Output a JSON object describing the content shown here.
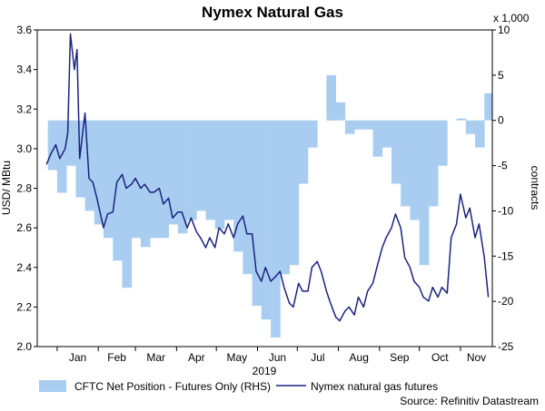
{
  "chart_data": {
    "type": "line",
    "title": "Nymex Natural Gas",
    "xlabel": "2019",
    "ylabel_left": "USD/ MBtu",
    "ylabel_right": "contracts",
    "right_unit": "x 1,000",
    "source": "Source: Refinitiv Datastream",
    "ylim_left": [
      2.0,
      3.6
    ],
    "ylim_right": [
      -25,
      10
    ],
    "yticks_left": [
      "2.0",
      "2.2",
      "2.4",
      "2.6",
      "2.8",
      "3.0",
      "3.2",
      "3.4",
      "3.6"
    ],
    "yticks_right": [
      "-25",
      "-20",
      "-15",
      "-10",
      "-5",
      "0",
      "5",
      "10"
    ],
    "month_labels": [
      "Jan",
      "Feb",
      "Mar",
      "Apr",
      "May",
      "Jun",
      "Jul",
      "Aug",
      "Sep",
      "Oct",
      "Nov"
    ],
    "grid": false,
    "colors": {
      "area": "#a9cdf0",
      "line": "#1a237e"
    },
    "series": [
      {
        "name": "CFTC Net Position - Futures Only (RHS)",
        "type": "area",
        "axis": "right",
        "x": [
          "2018-12-25",
          "2019-01-01",
          "2019-01-08",
          "2019-01-15",
          "2019-01-22",
          "2019-01-29",
          "2019-02-05",
          "2019-02-12",
          "2019-02-19",
          "2019-02-26",
          "2019-03-05",
          "2019-03-12",
          "2019-03-19",
          "2019-03-26",
          "2019-04-02",
          "2019-04-09",
          "2019-04-16",
          "2019-04-23",
          "2019-04-30",
          "2019-05-07",
          "2019-05-14",
          "2019-05-21",
          "2019-05-28",
          "2019-06-04",
          "2019-06-11",
          "2019-06-18",
          "2019-06-25",
          "2019-07-02",
          "2019-07-09",
          "2019-07-16",
          "2019-07-23",
          "2019-07-30",
          "2019-08-06",
          "2019-08-13",
          "2019-08-20",
          "2019-08-27",
          "2019-09-03",
          "2019-09-10",
          "2019-09-17",
          "2019-09-24",
          "2019-10-01",
          "2019-10-08",
          "2019-10-15",
          "2019-10-22",
          "2019-10-29",
          "2019-11-05",
          "2019-11-12",
          "2019-11-19"
        ],
        "y": [
          -5.5,
          -8,
          -5,
          -8.5,
          -10,
          -11.5,
          -13,
          -15.5,
          -18.5,
          -13,
          -14,
          -13,
          -13,
          -11.5,
          -12.5,
          -11,
          -10,
          -11,
          -12,
          -11,
          -14.5,
          -17,
          -20.5,
          -22,
          -24,
          -17,
          -16,
          -7,
          -3,
          0,
          5,
          2,
          -1.5,
          -1,
          -1,
          -4,
          -3,
          -7,
          -9.5,
          -11,
          -16,
          -9.5,
          -5,
          0,
          0.2,
          -1.5,
          -3,
          3
        ]
      },
      {
        "name": "Nymex natural gas futures",
        "type": "line",
        "axis": "left",
        "x": [
          "2018-12-24",
          "2018-12-27",
          "2018-12-31",
          "2019-01-03",
          "2019-01-07",
          "2019-01-09",
          "2019-01-11",
          "2019-01-14",
          "2019-01-16",
          "2019-01-18",
          "2019-01-22",
          "2019-01-25",
          "2019-01-28",
          "2019-01-31",
          "2019-02-05",
          "2019-02-08",
          "2019-02-12",
          "2019-02-15",
          "2019-02-19",
          "2019-02-22",
          "2019-02-26",
          "2019-03-01",
          "2019-03-05",
          "2019-03-08",
          "2019-03-12",
          "2019-03-15",
          "2019-03-19",
          "2019-03-22",
          "2019-03-26",
          "2019-03-29",
          "2019-04-02",
          "2019-04-05",
          "2019-04-09",
          "2019-04-12",
          "2019-04-16",
          "2019-04-19",
          "2019-04-23",
          "2019-04-26",
          "2019-04-30",
          "2019-05-03",
          "2019-05-07",
          "2019-05-10",
          "2019-05-14",
          "2019-05-17",
          "2019-05-21",
          "2019-05-24",
          "2019-05-28",
          "2019-05-31",
          "2019-06-04",
          "2019-06-07",
          "2019-06-11",
          "2019-06-14",
          "2019-06-18",
          "2019-06-21",
          "2019-06-25",
          "2019-06-28",
          "2019-07-02",
          "2019-07-05",
          "2019-07-09",
          "2019-07-12",
          "2019-07-16",
          "2019-07-19",
          "2019-07-23",
          "2019-07-26",
          "2019-07-30",
          "2019-08-02",
          "2019-08-06",
          "2019-08-09",
          "2019-08-13",
          "2019-08-16",
          "2019-08-20",
          "2019-08-23",
          "2019-08-27",
          "2019-08-30",
          "2019-09-03",
          "2019-09-06",
          "2019-09-10",
          "2019-09-13",
          "2019-09-17",
          "2019-09-20",
          "2019-09-24",
          "2019-09-27",
          "2019-10-01",
          "2019-10-04",
          "2019-10-08",
          "2019-10-11",
          "2019-10-15",
          "2019-10-18",
          "2019-10-22",
          "2019-10-25",
          "2019-10-29",
          "2019-11-01",
          "2019-11-05",
          "2019-11-08",
          "2019-11-12",
          "2019-11-15",
          "2019-11-19",
          "2019-11-22"
        ],
        "y": [
          2.92,
          2.97,
          3.02,
          2.95,
          3.0,
          3.08,
          3.58,
          3.4,
          3.5,
          2.95,
          3.18,
          2.85,
          2.83,
          2.75,
          2.6,
          2.67,
          2.68,
          2.83,
          2.87,
          2.8,
          2.82,
          2.85,
          2.8,
          2.82,
          2.78,
          2.78,
          2.8,
          2.72,
          2.75,
          2.65,
          2.68,
          2.68,
          2.6,
          2.65,
          2.58,
          2.55,
          2.5,
          2.55,
          2.5,
          2.6,
          2.57,
          2.62,
          2.55,
          2.62,
          2.66,
          2.57,
          2.57,
          2.38,
          2.33,
          2.4,
          2.33,
          2.35,
          2.38,
          2.3,
          2.22,
          2.2,
          2.32,
          2.28,
          2.28,
          2.4,
          2.43,
          2.38,
          2.28,
          2.22,
          2.15,
          2.13,
          2.18,
          2.2,
          2.16,
          2.25,
          2.2,
          2.28,
          2.32,
          2.4,
          2.5,
          2.55,
          2.6,
          2.67,
          2.6,
          2.45,
          2.4,
          2.33,
          2.3,
          2.25,
          2.23,
          2.3,
          2.25,
          2.3,
          2.27,
          2.55,
          2.62,
          2.77,
          2.65,
          2.7,
          2.55,
          2.62,
          2.45,
          2.25
        ]
      }
    ]
  }
}
